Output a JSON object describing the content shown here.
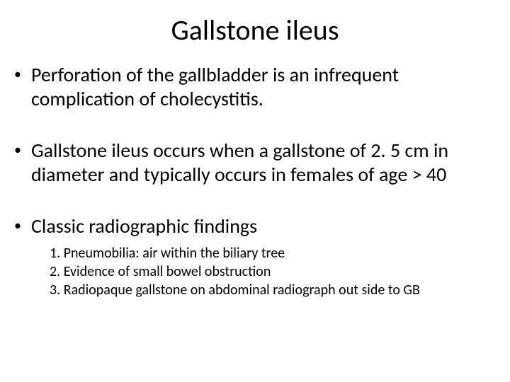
{
  "slide": {
    "title": "Gallstone ileus",
    "title_fontsize": 40,
    "body_fontsize": 28,
    "sub_fontsize": 20,
    "text_color": "#000000",
    "background_color": "#ffffff",
    "bullets": [
      {
        "text": "Perforation of the gallbladder is an infrequent complication of cholecystitis."
      },
      {
        "text": "Gallstone ileus occurs when a gallstone of 2. 5 cm in diameter and typically occurs in females of age > 40"
      },
      {
        "text": " Classic radiographic findings",
        "subitems": [
          "1. Pneumobilia: air within the biliary tree",
          "2. Evidence of small bowel obstruction",
          "3. Radiopaque gallstone on abdominal radiograph out side to GB"
        ]
      }
    ]
  }
}
